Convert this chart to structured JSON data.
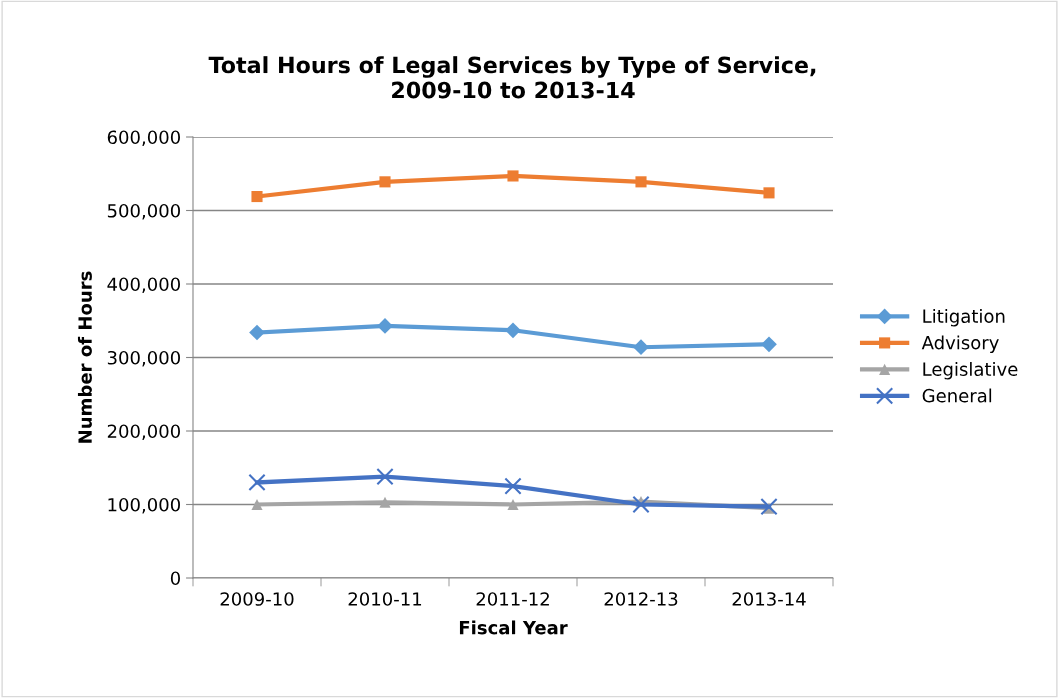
{
  "chart_data": {
    "type": "line",
    "title": "Total Hours of Legal Services by Type of Service,\n2009-10 to 2013-14",
    "xlabel": "Fiscal Year",
    "ylabel": "Number of Hours",
    "categories": [
      "2009-10",
      "2010-11",
      "2011-12",
      "2012-13",
      "2013-14"
    ],
    "series": [
      {
        "name": "Litigation",
        "color": "#5b9bd5",
        "marker": "diamond",
        "values": [
          334000,
          343000,
          337000,
          314000,
          318000
        ]
      },
      {
        "name": "Advisory",
        "color": "#ed7d31",
        "marker": "square",
        "values": [
          519000,
          539000,
          547000,
          539000,
          524000
        ]
      },
      {
        "name": "Legislative",
        "color": "#a5a5a5",
        "marker": "triangle",
        "values": [
          100000,
          103000,
          100000,
          104000,
          95000
        ]
      },
      {
        "name": "General",
        "color": "#4472c4",
        "marker": "cross",
        "values": [
          130000,
          138000,
          125000,
          100000,
          97000
        ]
      }
    ],
    "ylim": [
      0,
      600000
    ],
    "yticks": [
      {
        "value": 0,
        "label": "0"
      },
      {
        "value": 100000,
        "label": "100,000"
      },
      {
        "value": 200000,
        "label": "200,000"
      },
      {
        "value": 300000,
        "label": "300,000"
      },
      {
        "value": 400000,
        "label": "400,000"
      },
      {
        "value": 500000,
        "label": "500,000"
      },
      {
        "value": 600000,
        "label": "600,000"
      }
    ],
    "grid": "y",
    "legend": "right"
  }
}
